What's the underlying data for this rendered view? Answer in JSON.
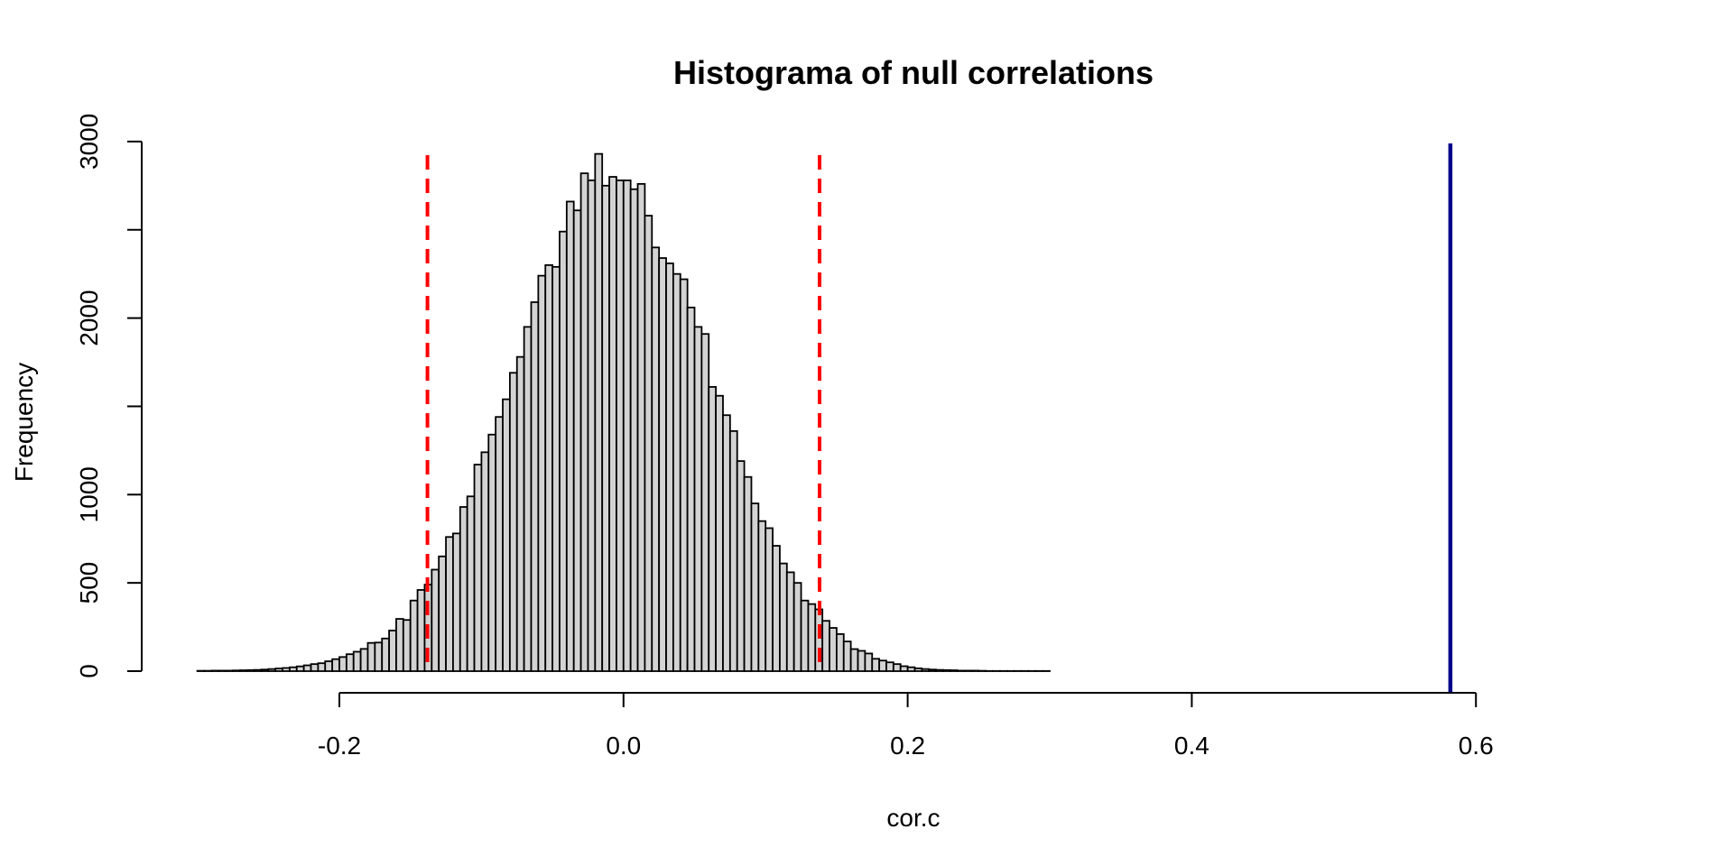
{
  "chart_data": {
    "type": "bar",
    "title": "Histograma of null correlations",
    "xlabel": "cor.c",
    "ylabel": "Frequency",
    "xlim": [
      -0.3,
      0.74
    ],
    "ylim": [
      0,
      3000
    ],
    "x_ticks": [
      -0.2,
      0.0,
      0.2,
      0.4,
      0.6
    ],
    "x_tick_labels": [
      "-0.2",
      "0.0",
      "0.2",
      "0.4",
      "0.6"
    ],
    "y_ticks": [
      0,
      500,
      1000,
      1500,
      2000,
      2500,
      3000
    ],
    "y_tick_labels": [
      "0",
      "500",
      "1000",
      "",
      "2000",
      "",
      "3000"
    ],
    "bin_width": 0.005,
    "bin_start": -0.3,
    "counts": [
      2,
      2,
      3,
      3,
      3,
      4,
      5,
      6,
      7,
      9,
      12,
      15,
      18,
      22,
      27,
      33,
      40,
      45,
      56,
      68,
      80,
      96,
      110,
      126,
      160,
      162,
      185,
      230,
      296,
      290,
      400,
      460,
      490,
      575,
      650,
      760,
      780,
      930,
      990,
      1170,
      1240,
      1340,
      1440,
      1540,
      1690,
      1780,
      1950,
      2090,
      2240,
      2300,
      2290,
      2490,
      2660,
      2610,
      2820,
      2780,
      2930,
      2750,
      2800,
      2780,
      2780,
      2730,
      2760,
      2580,
      2400,
      2340,
      2310,
      2250,
      2220,
      2060,
      1950,
      1910,
      1610,
      1560,
      1450,
      1360,
      1190,
      1100,
      950,
      850,
      810,
      710,
      610,
      560,
      500,
      400,
      380,
      350,
      285,
      245,
      210,
      168,
      125,
      115,
      100,
      70,
      60,
      50,
      40,
      28,
      22,
      16,
      12,
      9,
      7,
      6,
      5,
      3,
      3,
      3,
      2,
      1,
      1,
      1,
      1,
      1,
      1,
      1,
      1,
      1
    ],
    "reference_lines": [
      {
        "x": -0.138,
        "style": "dashed",
        "color": "#ff0000"
      },
      {
        "x": 0.138,
        "style": "dashed",
        "color": "#ff0000"
      },
      {
        "x": 0.582,
        "style": "solid",
        "color": "#00008b"
      }
    ],
    "bar_fill": "#d3d3d3",
    "grid": false,
    "legend": "none"
  }
}
